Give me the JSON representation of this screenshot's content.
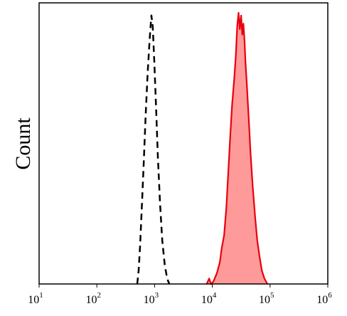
{
  "chart_data": {
    "type": "area",
    "title": "",
    "xlabel": "",
    "ylabel": "Count",
    "x_scale": "log",
    "xlim": [
      10,
      1000000
    ],
    "ylim": [
      0,
      1
    ],
    "grid": false,
    "legend": "none",
    "x_ticks": [
      {
        "base": "10",
        "exp": "1",
        "value": 10
      },
      {
        "base": "10",
        "exp": "2",
        "value": 100
      },
      {
        "base": "10",
        "exp": "3",
        "value": 1000
      },
      {
        "base": "10",
        "exp": "4",
        "value": 10000
      },
      {
        "base": "10",
        "exp": "5",
        "value": 100000
      },
      {
        "base": "10",
        "exp": "6",
        "value": 1000000
      }
    ],
    "series": [
      {
        "style": "dashed-outline",
        "color": "#000000",
        "points": [
          [
            500,
            0.0
          ],
          [
            530,
            0.05
          ],
          [
            560,
            0.14
          ],
          [
            600,
            0.28
          ],
          [
            650,
            0.45
          ],
          [
            700,
            0.62
          ],
          [
            760,
            0.78
          ],
          [
            820,
            0.9
          ],
          [
            880,
            0.99
          ],
          [
            930,
            0.95
          ],
          [
            990,
            0.82
          ],
          [
            1060,
            0.65
          ],
          [
            1140,
            0.47
          ],
          [
            1240,
            0.3
          ],
          [
            1360,
            0.16
          ],
          [
            1500,
            0.07
          ],
          [
            1650,
            0.02
          ],
          [
            1800,
            0.0
          ]
        ]
      },
      {
        "style": "filled",
        "color": "#e8000b",
        "fill": "#ff9a9a",
        "points": [
          [
            8000,
            0.0
          ],
          [
            8800,
            0.02
          ],
          [
            9500,
            0.0
          ],
          [
            10500,
            0.01
          ],
          [
            12000,
            0.04
          ],
          [
            13500,
            0.08
          ],
          [
            14500,
            0.13
          ],
          [
            16000,
            0.18
          ],
          [
            17500,
            0.28
          ],
          [
            19000,
            0.42
          ],
          [
            20500,
            0.55
          ],
          [
            22000,
            0.66
          ],
          [
            24000,
            0.76
          ],
          [
            25500,
            0.84
          ],
          [
            27000,
            0.95
          ],
          [
            28500,
            1.0
          ],
          [
            30000,
            0.94
          ],
          [
            31500,
            0.99
          ],
          [
            33000,
            0.92
          ],
          [
            34500,
            0.96
          ],
          [
            36000,
            0.9
          ],
          [
            37500,
            0.82
          ],
          [
            40000,
            0.72
          ],
          [
            43000,
            0.6
          ],
          [
            46000,
            0.48
          ],
          [
            50000,
            0.36
          ],
          [
            55000,
            0.25
          ],
          [
            60000,
            0.16
          ],
          [
            66000,
            0.1
          ],
          [
            72000,
            0.05
          ],
          [
            80000,
            0.02
          ],
          [
            90000,
            0.0
          ]
        ]
      }
    ]
  }
}
